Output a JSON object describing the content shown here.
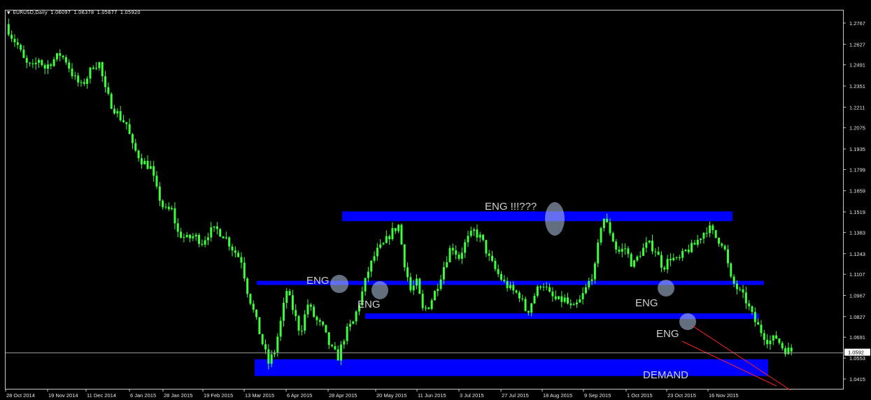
{
  "window": {
    "symbol_label": "EURUSD,Daily",
    "ohlc": [
      "1.06097",
      "1.06378",
      "1.05677",
      "1.05920"
    ],
    "collapse_icon": "triangle-down-icon"
  },
  "colors": {
    "background": "#000000",
    "candles": "#3cff3c",
    "zones": "#0000ff",
    "trend_lines": "#ff2020",
    "text_annotations": "#d0d0d0",
    "price_line": "#9a9a9a",
    "axis_text": "#e8e8e8",
    "current_price_box": "#ffffff"
  },
  "chart_data": {
    "type": "candlestick",
    "y_ticks": [
      "1.2767",
      "1.2627",
      "1.2491",
      "1.2351",
      "1.2211",
      "1.2075",
      "1.1935",
      "1.1799",
      "1.1659",
      "1.1519",
      "1.1383",
      "1.1243",
      "1.1107",
      "1.0967",
      "1.0827",
      "1.0691",
      "1.0553",
      "1.0415"
    ],
    "current_price": "1.0592",
    "ylim": [
      1.035,
      1.285
    ],
    "x_ticks": [
      "28 Oct 2014",
      "19 Nov 2014",
      "11 Dec 2014",
      "6 Jan 2015",
      "28 Jan 2015",
      "19 Feb 2015",
      "13 Mar 2015",
      "6 Apr 2015",
      "28 Apr 2015",
      "20 May 2015",
      "11 Jun 2015",
      "3 Jul 2015",
      "27 Jul 2015",
      "18 Aug 2015",
      "9 Sep 2015",
      "1 Oct 2015",
      "23 Oct 2015",
      "16 Nov 2015"
    ],
    "price_path": [
      [
        0,
        1.276
      ],
      [
        0.4,
        1.268
      ],
      [
        0.8,
        1.262
      ],
      [
        1.3,
        1.25
      ],
      [
        1.8,
        1.247
      ],
      [
        2.2,
        1.253
      ],
      [
        2.6,
        1.247
      ],
      [
        3.0,
        1.251
      ],
      [
        3.6,
        1.256
      ],
      [
        4.0,
        1.252
      ],
      [
        4.5,
        1.241
      ],
      [
        5.0,
        1.235
      ],
      [
        5.4,
        1.241
      ],
      [
        5.8,
        1.249
      ],
      [
        6.2,
        1.25
      ],
      [
        6.6,
        1.232
      ],
      [
        7.0,
        1.223
      ],
      [
        7.6,
        1.214
      ],
      [
        8.0,
        1.21
      ],
      [
        8.4,
        1.195
      ],
      [
        9.0,
        1.186
      ],
      [
        9.6,
        1.181
      ],
      [
        10.0,
        1.166
      ],
      [
        10.5,
        1.153
      ],
      [
        11.0,
        1.153
      ],
      [
        11.4,
        1.138
      ],
      [
        12.0,
        1.134
      ],
      [
        12.5,
        1.136
      ],
      [
        13.0,
        1.132
      ],
      [
        13.5,
        1.139
      ],
      [
        14.0,
        1.14
      ],
      [
        14.5,
        1.136
      ],
      [
        15.0,
        1.128
      ],
      [
        15.6,
        1.12
      ],
      [
        16.0,
        1.1
      ],
      [
        16.5,
        1.083
      ],
      [
        17.0,
        1.065
      ],
      [
        17.4,
        1.052
      ],
      [
        17.8,
        1.06
      ],
      [
        18.2,
        1.079
      ],
      [
        18.6,
        1.1
      ],
      [
        19.0,
        1.088
      ],
      [
        19.5,
        1.072
      ],
      [
        20.0,
        1.091
      ],
      [
        20.5,
        1.081
      ],
      [
        21.0,
        1.075
      ],
      [
        21.5,
        1.062
      ],
      [
        22.0,
        1.056
      ],
      [
        22.5,
        1.072
      ],
      [
        23.0,
        1.079
      ],
      [
        23.5,
        1.095
      ],
      [
        24.0,
        1.113
      ],
      [
        24.5,
        1.125
      ],
      [
        25.0,
        1.13
      ],
      [
        25.5,
        1.138
      ],
      [
        26.0,
        1.143
      ],
      [
        26.4,
        1.118
      ],
      [
        26.8,
        1.1
      ],
      [
        27.2,
        1.105
      ],
      [
        27.6,
        1.087
      ],
      [
        28.0,
        1.09
      ],
      [
        28.5,
        1.101
      ],
      [
        29.0,
        1.116
      ],
      [
        29.5,
        1.13
      ],
      [
        30.0,
        1.122
      ],
      [
        30.5,
        1.133
      ],
      [
        31.0,
        1.139
      ],
      [
        31.5,
        1.134
      ],
      [
        32.0,
        1.121
      ],
      [
        32.5,
        1.112
      ],
      [
        33.0,
        1.105
      ],
      [
        33.5,
        1.1
      ],
      [
        34.0,
        1.097
      ],
      [
        34.5,
        1.085
      ],
      [
        35.0,
        1.097
      ],
      [
        35.5,
        1.106
      ],
      [
        36.0,
        1.097
      ],
      [
        36.5,
        1.093
      ],
      [
        37.0,
        1.094
      ],
      [
        37.5,
        1.087
      ],
      [
        38.0,
        1.093
      ],
      [
        38.5,
        1.103
      ],
      [
        39.0,
        1.115
      ],
      [
        39.5,
        1.15
      ],
      [
        40.0,
        1.139
      ],
      [
        40.5,
        1.125
      ],
      [
        41.0,
        1.128
      ],
      [
        41.5,
        1.116
      ],
      [
        42.0,
        1.125
      ],
      [
        42.5,
        1.131
      ],
      [
        43.0,
        1.127
      ],
      [
        43.5,
        1.115
      ],
      [
        44.0,
        1.122
      ],
      [
        44.5,
        1.119
      ],
      [
        45.0,
        1.126
      ],
      [
        45.5,
        1.129
      ],
      [
        46.0,
        1.136
      ],
      [
        46.5,
        1.142
      ],
      [
        47.0,
        1.135
      ],
      [
        47.5,
        1.131
      ],
      [
        48.0,
        1.107
      ],
      [
        48.5,
        1.1
      ],
      [
        49.0,
        1.093
      ],
      [
        49.5,
        1.081
      ],
      [
        50.0,
        1.073
      ],
      [
        50.5,
        1.066
      ],
      [
        51.0,
        1.069
      ],
      [
        51.5,
        1.061
      ],
      [
        52.0,
        1.06
      ]
    ],
    "zones": [
      {
        "y": 1.149
      },
      {
        "y": 1.105
      },
      {
        "y": 1.083
      },
      {
        "y": 1.049
      }
    ],
    "zone_label": "DEMAND",
    "annotations": [
      {
        "text": "ENG !!!???"
      },
      {
        "text": "ENG"
      },
      {
        "text": "ENG"
      },
      {
        "text": "ENG"
      },
      {
        "text": "ENG"
      }
    ]
  }
}
